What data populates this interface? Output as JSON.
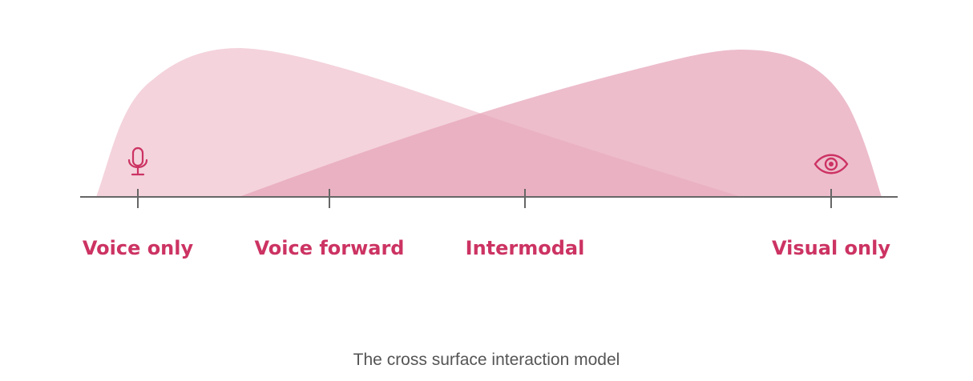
{
  "diagram": {
    "colors": {
      "accent": "#cc3363",
      "voice_curve": "#f4d3dc",
      "visual_curve": "#e6a3b8",
      "axis": "#666666",
      "caption": "#555555"
    },
    "scale_points": [
      {
        "label": "Voice only",
        "icon": "microphone-icon"
      },
      {
        "label": "Voice forward"
      },
      {
        "label": "Intermodal"
      },
      {
        "label": "Visual only",
        "icon": "eye-icon"
      }
    ],
    "caption": "The cross surface interaction model"
  }
}
